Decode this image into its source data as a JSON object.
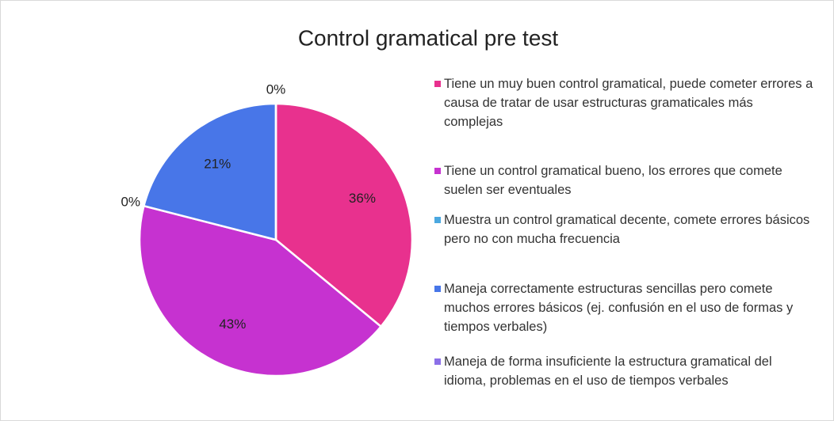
{
  "chart_data": {
    "type": "pie",
    "title": "Control gramatical pre test",
    "categories": [
      "Tiene un muy buen control gramatical, puede cometer errores a causa de tratar de usar estructuras gramaticales más complejas",
      "Tiene un control gramatical bueno, los errores que comete suelen ser eventuales",
      "Muestra un control gramatical decente, comete errores básicos pero no con mucha frecuencia",
      "Maneja correctamente estructuras sencillas pero comete muchos errores básicos (ej. confusión en el uso de formas y tiempos verbales)",
      "Maneja de forma insuficiente la estructura gramatical del idioma, problemas en el uso de tiempos verbales"
    ],
    "values": [
      36,
      43,
      0,
      21,
      0
    ],
    "value_labels": [
      "36%",
      "43%",
      "0%",
      "21%",
      "0%"
    ],
    "colors": [
      "#e8318e",
      "#c632d0",
      "#4ba8e0",
      "#4876e8",
      "#8b6fe8"
    ]
  }
}
